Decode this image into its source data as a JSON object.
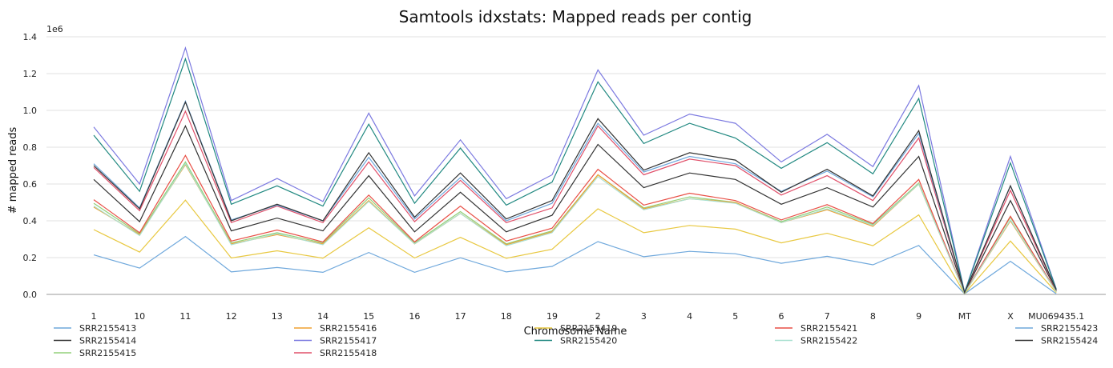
{
  "chart_data": {
    "type": "line",
    "title": "Samtools idxstats: Mapped reads per contig",
    "xlabel": "Chromosome Name",
    "ylabel": "# mapped reads",
    "y_multiplier_label": "1e6",
    "ylim": [
      0,
      1.4
    ],
    "yticks": [
      "0.0",
      "0.2",
      "0.4",
      "0.6",
      "0.8",
      "1.0",
      "1.2",
      "1.4"
    ],
    "grid": true,
    "legend_position": "bottom",
    "categories": [
      "1",
      "10",
      "11",
      "12",
      "13",
      "14",
      "15",
      "16",
      "17",
      "18",
      "19",
      "2",
      "3",
      "4",
      "5",
      "6",
      "7",
      "8",
      "9",
      "MT",
      "X",
      "MU069435.1"
    ],
    "series": [
      {
        "name": "SRR2155413",
        "color": "#6fa8dc",
        "values": [
          0.215,
          0.143,
          0.315,
          0.122,
          0.146,
          0.12,
          0.228,
          0.12,
          0.199,
          0.122,
          0.152,
          0.287,
          0.205,
          0.234,
          0.221,
          0.169,
          0.207,
          0.161,
          0.266,
          0.003,
          0.18,
          0.003
        ]
      },
      {
        "name": "SRR2155414",
        "color": "#333333",
        "values": [
          0.625,
          0.395,
          0.915,
          0.345,
          0.415,
          0.345,
          0.645,
          0.34,
          0.555,
          0.34,
          0.43,
          0.815,
          0.58,
          0.66,
          0.625,
          0.49,
          0.58,
          0.475,
          0.75,
          0.008,
          0.51,
          0.02
        ]
      },
      {
        "name": "SRR2155415",
        "color": "#93d07a",
        "values": [
          0.495,
          0.33,
          0.72,
          0.28,
          0.335,
          0.28,
          0.525,
          0.28,
          0.45,
          0.275,
          0.345,
          0.65,
          0.47,
          0.53,
          0.5,
          0.395,
          0.475,
          0.38,
          0.605,
          0.006,
          0.42,
          0.015
        ]
      },
      {
        "name": "SRR2155416",
        "color": "#f0a030",
        "values": [
          0.475,
          0.325,
          0.705,
          0.275,
          0.325,
          0.275,
          0.51,
          0.275,
          0.44,
          0.27,
          0.34,
          0.65,
          0.465,
          0.52,
          0.5,
          0.39,
          0.46,
          0.37,
          0.6,
          0.006,
          0.4,
          0.014
        ]
      },
      {
        "name": "SRR2155417",
        "color": "#7b79e0",
        "values": [
          0.91,
          0.6,
          1.34,
          0.51,
          0.63,
          0.505,
          0.985,
          0.535,
          0.84,
          0.52,
          0.65,
          1.22,
          0.865,
          0.98,
          0.93,
          0.72,
          0.87,
          0.695,
          1.135,
          0.012,
          0.75,
          0.03
        ]
      },
      {
        "name": "SRR2155418",
        "color": "#e0506a",
        "values": [
          0.69,
          0.455,
          0.995,
          0.39,
          0.48,
          0.39,
          0.72,
          0.395,
          0.62,
          0.39,
          0.47,
          0.915,
          0.65,
          0.735,
          0.7,
          0.54,
          0.645,
          0.51,
          0.85,
          0.009,
          0.565,
          0.022
        ]
      },
      {
        "name": "SRR2155419",
        "color": "#e8c840",
        "values": [
          0.352,
          0.23,
          0.512,
          0.198,
          0.237,
          0.197,
          0.362,
          0.198,
          0.31,
          0.196,
          0.245,
          0.465,
          0.335,
          0.375,
          0.355,
          0.28,
          0.332,
          0.265,
          0.432,
          0.004,
          0.29,
          0.01
        ]
      },
      {
        "name": "SRR2155420",
        "color": "#208880",
        "values": [
          0.865,
          0.56,
          1.28,
          0.49,
          0.59,
          0.48,
          0.925,
          0.495,
          0.795,
          0.485,
          0.61,
          1.155,
          0.82,
          0.93,
          0.85,
          0.685,
          0.825,
          0.655,
          1.065,
          0.011,
          0.715,
          0.028
        ]
      },
      {
        "name": "SRR2155421",
        "color": "#e84f45",
        "values": [
          0.515,
          0.335,
          0.755,
          0.29,
          0.35,
          0.285,
          0.54,
          0.285,
          0.48,
          0.29,
          0.36,
          0.68,
          0.485,
          0.55,
          0.51,
          0.405,
          0.488,
          0.385,
          0.625,
          0.007,
          0.425,
          0.016
        ]
      },
      {
        "name": "SRR2155422",
        "color": "#a8e0d0",
        "values": [
          0.48,
          0.32,
          0.71,
          0.27,
          0.33,
          0.27,
          0.505,
          0.275,
          0.44,
          0.265,
          0.335,
          0.64,
          0.46,
          0.52,
          0.495,
          0.39,
          0.465,
          0.375,
          0.6,
          0.006,
          0.405,
          0.014
        ]
      },
      {
        "name": "SRR2155423",
        "color": "#6fa8dc",
        "values": [
          0.71,
          0.47,
          1.05,
          0.405,
          0.485,
          0.4,
          0.745,
          0.41,
          0.635,
          0.4,
          0.495,
          0.93,
          0.665,
          0.75,
          0.71,
          0.56,
          0.67,
          0.53,
          0.875,
          0.01,
          0.59,
          0.023
        ]
      },
      {
        "name": "SRR2155424",
        "color": "#333333",
        "values": [
          0.7,
          0.465,
          1.045,
          0.4,
          0.49,
          0.4,
          0.77,
          0.42,
          0.66,
          0.41,
          0.51,
          0.955,
          0.675,
          0.77,
          0.73,
          0.555,
          0.68,
          0.535,
          0.89,
          0.01,
          0.59,
          0.024
        ]
      }
    ]
  }
}
